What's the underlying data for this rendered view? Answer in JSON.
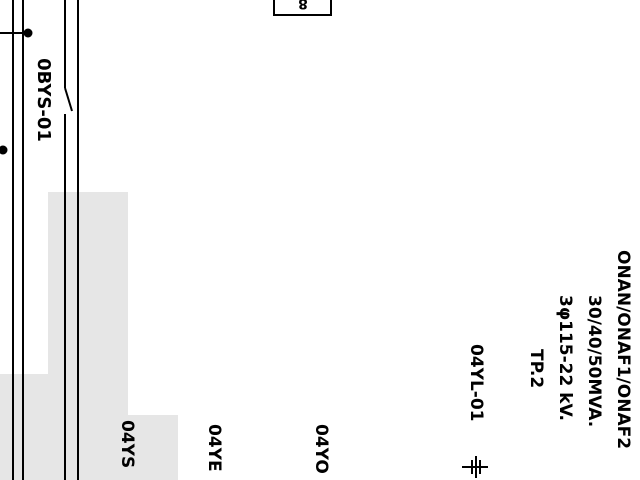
{
  "diagram": {
    "colors": {
      "ink": "#000000",
      "shade": "#e6e6e6",
      "paper": "#ffffff"
    },
    "box_label": "8",
    "labels": {
      "switch_0bys": "0BYS-01",
      "bus_04ys": "04YS",
      "bus_04ye": "04YE",
      "bus_04yo": "04YO",
      "ground_04yl": "04YL-01",
      "transformer_name": "TP.2",
      "transformer_phase": "3φ115-22 kV.",
      "transformer_mva": "30/40/50MVA.",
      "transformer_cooling": "ONAN/ONAF1/ONAF2"
    }
  }
}
